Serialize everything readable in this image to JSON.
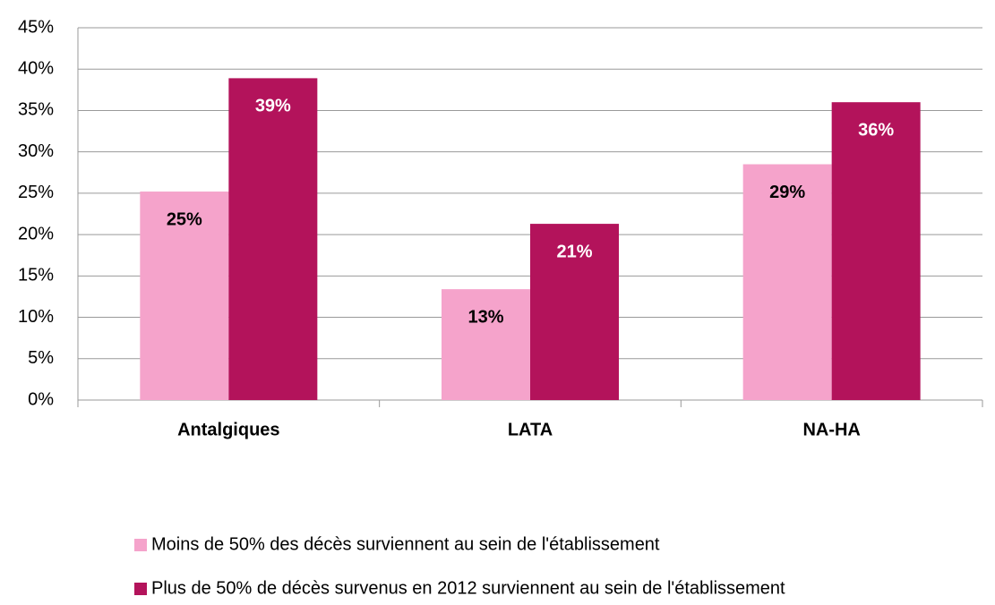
{
  "chart_data": {
    "type": "bar",
    "categories": [
      "Antalgiques",
      "LATA",
      "NA-HA"
    ],
    "series": [
      {
        "name": "Moins de 50% des décès surviennent au sein de l'établissement",
        "color": "#f5a3cb",
        "label_color": "#000000",
        "values": [
          25.2,
          13.4,
          28.5
        ],
        "value_labels": [
          "25%",
          "13%",
          "29%"
        ]
      },
      {
        "name": "Plus de 50% de décès survenus en 2012 surviennent au sein de l'établissement",
        "color": "#b3135b",
        "label_color": "#ffffff",
        "values": [
          38.9,
          21.3,
          36.0
        ],
        "value_labels": [
          "39%",
          "21%",
          "36%"
        ]
      }
    ],
    "ylim": [
      0,
      45
    ],
    "yticks": [
      {
        "value": 0,
        "label": "0%"
      },
      {
        "value": 5,
        "label": "5%"
      },
      {
        "value": 10,
        "label": "10%"
      },
      {
        "value": 15,
        "label": "15%"
      },
      {
        "value": 20,
        "label": "20%"
      },
      {
        "value": 25,
        "label": "25%"
      },
      {
        "value": 30,
        "label": "30%"
      },
      {
        "value": 35,
        "label": "35%"
      },
      {
        "value": 40,
        "label": "40%"
      },
      {
        "value": 45,
        "label": "45%"
      }
    ],
    "grid": true,
    "legend": "bottom"
  }
}
